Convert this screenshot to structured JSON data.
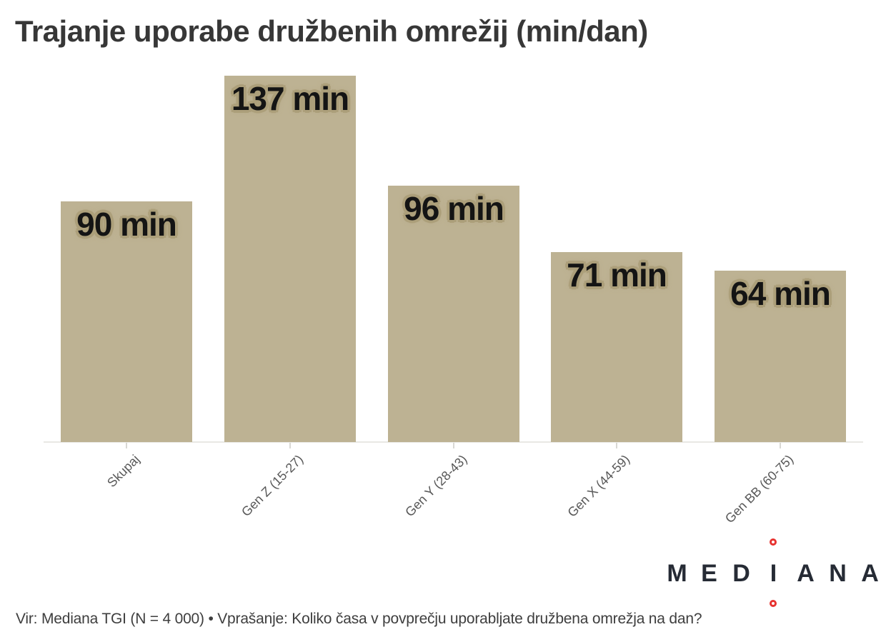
{
  "title": "Trajanje uporabe družbenih omrežij (min/dan)",
  "source_note": "Vir: Mediana TGI (N = 4 000) • Vprašanje: Koliko časa v povprečju uporabljate družbena omrežja na dan?",
  "logo": {
    "name": "MEDIANA",
    "letters": [
      "M",
      "E",
      "D",
      "I",
      "A",
      "N",
      "A"
    ],
    "accent_shape": "red-ring"
  },
  "colors": {
    "bar": "#bdb293",
    "label_text": "#141414",
    "label_halo": "#ac9f7a",
    "title": "#373737",
    "axis_line": "#e9e8e4",
    "tick": "#d9d8d4",
    "category_text": "#585858",
    "source_text": "#3e3e3e",
    "logo_text": "#262b35",
    "logo_accent": "#e73330",
    "background": "#ffffff"
  },
  "chart_data": {
    "type": "bar",
    "orientation": "vertical",
    "title": "Trajanje uporabe družbenih omrežij (min/dan)",
    "categories": [
      "Skupaj",
      "Gen Z (15-27)",
      "Gen Y (28-43)",
      "Gen X (44-59)",
      "Gen BB (60-75)"
    ],
    "values": [
      90,
      137,
      96,
      71,
      64
    ],
    "value_labels": [
      "90 min",
      "137 min",
      "96 min",
      "71 min",
      "64 min"
    ],
    "unit": "min/dan",
    "xlabel": "",
    "ylabel": "",
    "ylim": [
      0,
      137
    ],
    "grid": false,
    "legend": false,
    "y_axis_visible": false,
    "category_label_rotation_deg": -45,
    "bar_color": "#bdb293"
  }
}
